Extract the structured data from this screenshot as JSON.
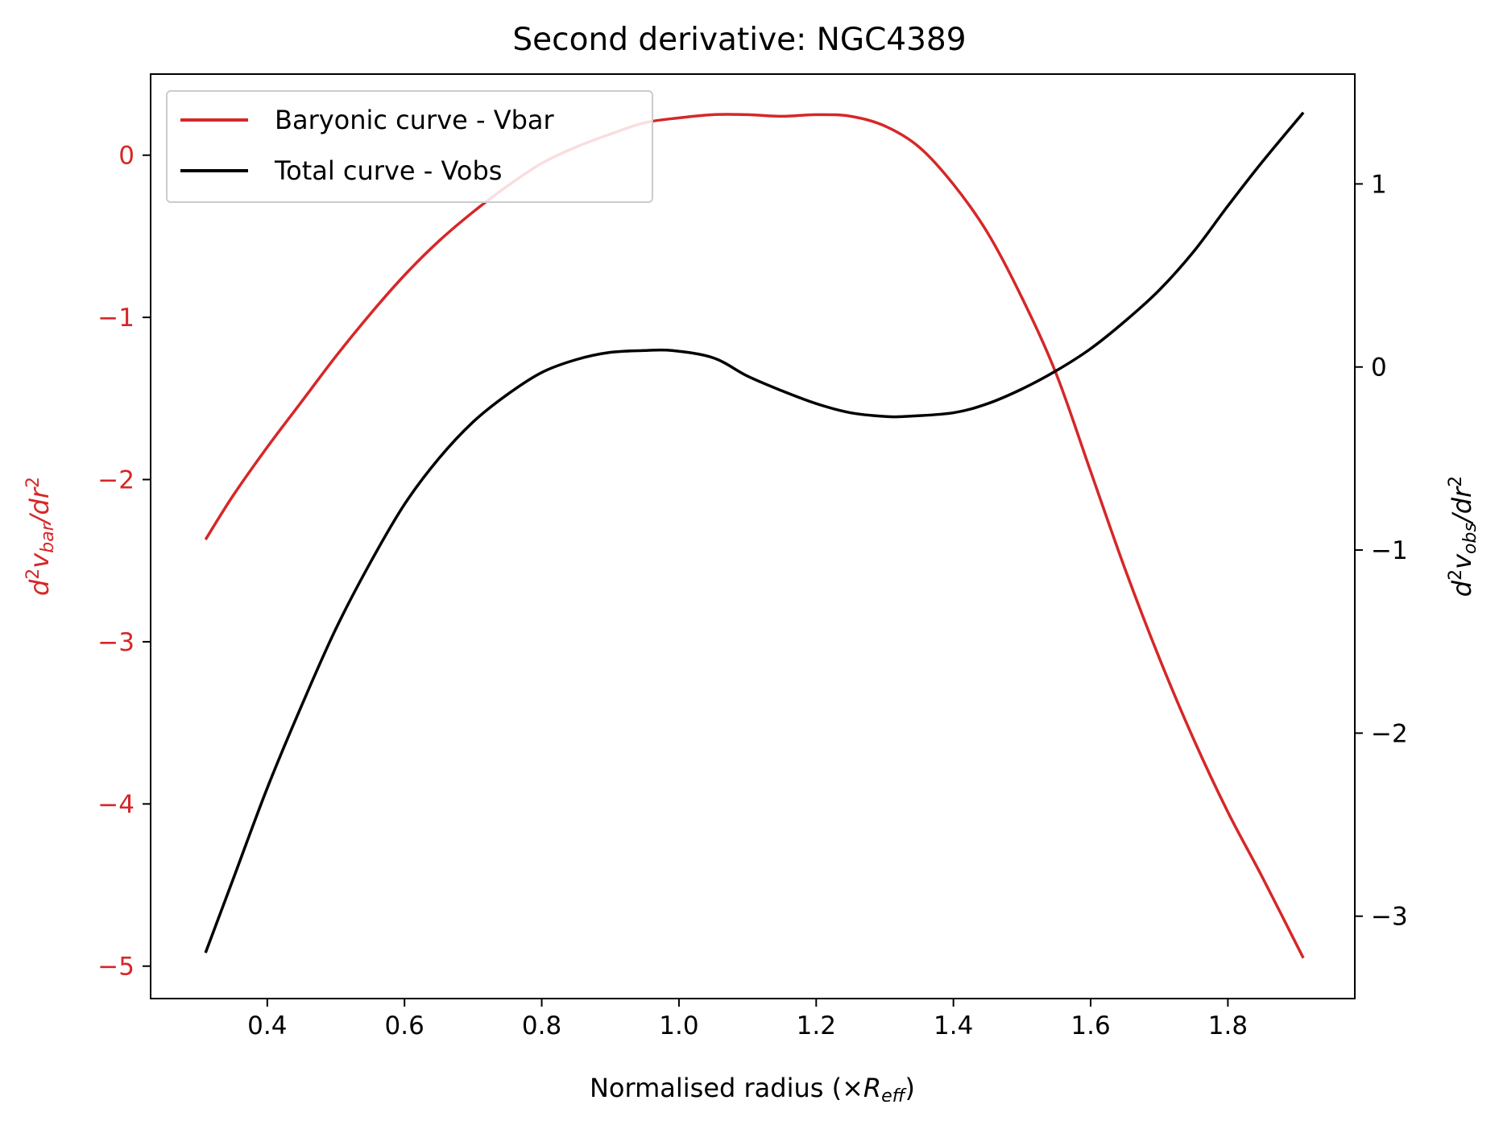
{
  "chart_data": {
    "type": "line",
    "title": "Second derivative: NGC4389",
    "xlabel": {
      "prefix": "Normalised radius (×",
      "symbol": "R",
      "sub": "eff",
      "suffix": ")"
    },
    "ylabel_left": {
      "base": "d",
      "sup1": "2",
      "v": "v",
      "sub": "bar",
      "mid": "/dr",
      "sup2": "2"
    },
    "ylabel_right": {
      "base": "d",
      "sup1": "2",
      "v": "v",
      "sub": "obs",
      "mid": "/dr",
      "sup2": "2"
    },
    "xlim": [
      0.23,
      1.985
    ],
    "ylim_left": [
      -5.2,
      0.5
    ],
    "ylim_right": [
      -3.45,
      1.6
    ],
    "x_ticks": [
      "0.4",
      "0.6",
      "0.8",
      "1.0",
      "1.2",
      "1.4",
      "1.6",
      "1.8"
    ],
    "y_ticks_left": [
      "0",
      "−1",
      "−2",
      "−3",
      "−4",
      "−5"
    ],
    "y_ticks_right": [
      "1",
      "0",
      "−1",
      "−2",
      "−3"
    ],
    "grid": false,
    "legend_position": "top-left",
    "colors": {
      "bar": "#d62728",
      "obs": "#000000"
    },
    "series": [
      {
        "name": "Baryonic curve - Vbar",
        "axis": "left",
        "x": [
          0.31,
          0.35,
          0.4,
          0.45,
          0.5,
          0.55,
          0.6,
          0.65,
          0.7,
          0.75,
          0.8,
          0.85,
          0.9,
          0.95,
          1.0,
          1.05,
          1.1,
          1.15,
          1.2,
          1.25,
          1.3,
          1.35,
          1.4,
          1.45,
          1.5,
          1.55,
          1.6,
          1.65,
          1.7,
          1.75,
          1.8,
          1.85,
          1.91
        ],
        "y": [
          -2.37,
          -2.1,
          -1.8,
          -1.52,
          -1.24,
          -0.98,
          -0.74,
          -0.53,
          -0.35,
          -0.19,
          -0.05,
          0.05,
          0.13,
          0.2,
          0.23,
          0.25,
          0.25,
          0.24,
          0.25,
          0.24,
          0.18,
          0.05,
          -0.18,
          -0.48,
          -0.88,
          -1.35,
          -1.95,
          -2.55,
          -3.1,
          -3.6,
          -4.05,
          -4.45,
          -4.95
        ]
      },
      {
        "name": "Total curve - Vobs",
        "axis": "right",
        "x": [
          0.31,
          0.35,
          0.4,
          0.45,
          0.5,
          0.55,
          0.6,
          0.65,
          0.7,
          0.75,
          0.8,
          0.85,
          0.9,
          0.95,
          0.99,
          1.05,
          1.1,
          1.15,
          1.2,
          1.25,
          1.3,
          1.33,
          1.4,
          1.45,
          1.5,
          1.55,
          1.6,
          1.65,
          1.7,
          1.75,
          1.8,
          1.85,
          1.91
        ],
        "y": [
          -3.2,
          -2.8,
          -2.3,
          -1.85,
          -1.43,
          -1.07,
          -0.75,
          -0.5,
          -0.3,
          -0.15,
          -0.03,
          0.04,
          0.08,
          0.09,
          0.09,
          0.05,
          -0.05,
          -0.13,
          -0.2,
          -0.25,
          -0.27,
          -0.27,
          -0.25,
          -0.2,
          -0.12,
          -0.02,
          0.1,
          0.25,
          0.42,
          0.63,
          0.88,
          1.12,
          1.39
        ]
      }
    ]
  }
}
